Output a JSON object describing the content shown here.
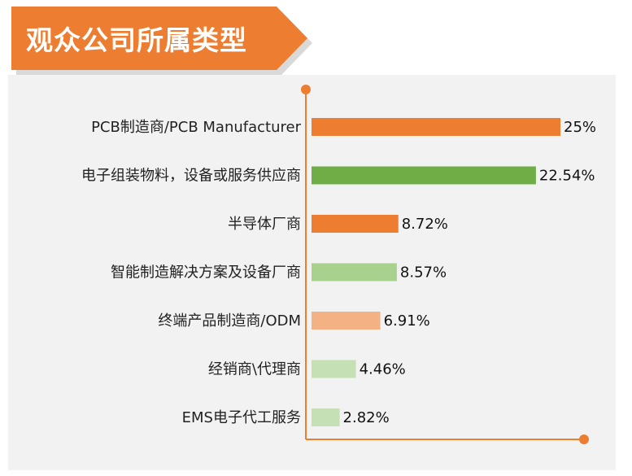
{
  "chart_data": {
    "type": "bar",
    "orientation": "horizontal",
    "title": "观众公司所属类型",
    "categories": [
      "PCB制造商/PCB Manufacturer",
      "电子组装物料，设备或服务供应商",
      "半导体厂商",
      "智能制造解决方案及设备厂商",
      "终端产品制造商/ODM",
      "经销商\\代理商",
      "EMS电子代工服务"
    ],
    "values": [
      25,
      22.54,
      8.72,
      8.57,
      6.91,
      4.46,
      2.82
    ],
    "value_labels": [
      "25%",
      "22.54%",
      "8.72%",
      "8.57%",
      "6.91%",
      "4.46%",
      "2.82%"
    ],
    "unit": "%",
    "bar_colors": [
      "#ed7d31",
      "#70ad47",
      "#ed7d31",
      "#a9d18e",
      "#f4b183",
      "#c5e0b4",
      "#c5e0b4"
    ],
    "axis_color": "#ed7d31",
    "banner_color": "#ed7d31",
    "grid": false,
    "legend": "none"
  }
}
